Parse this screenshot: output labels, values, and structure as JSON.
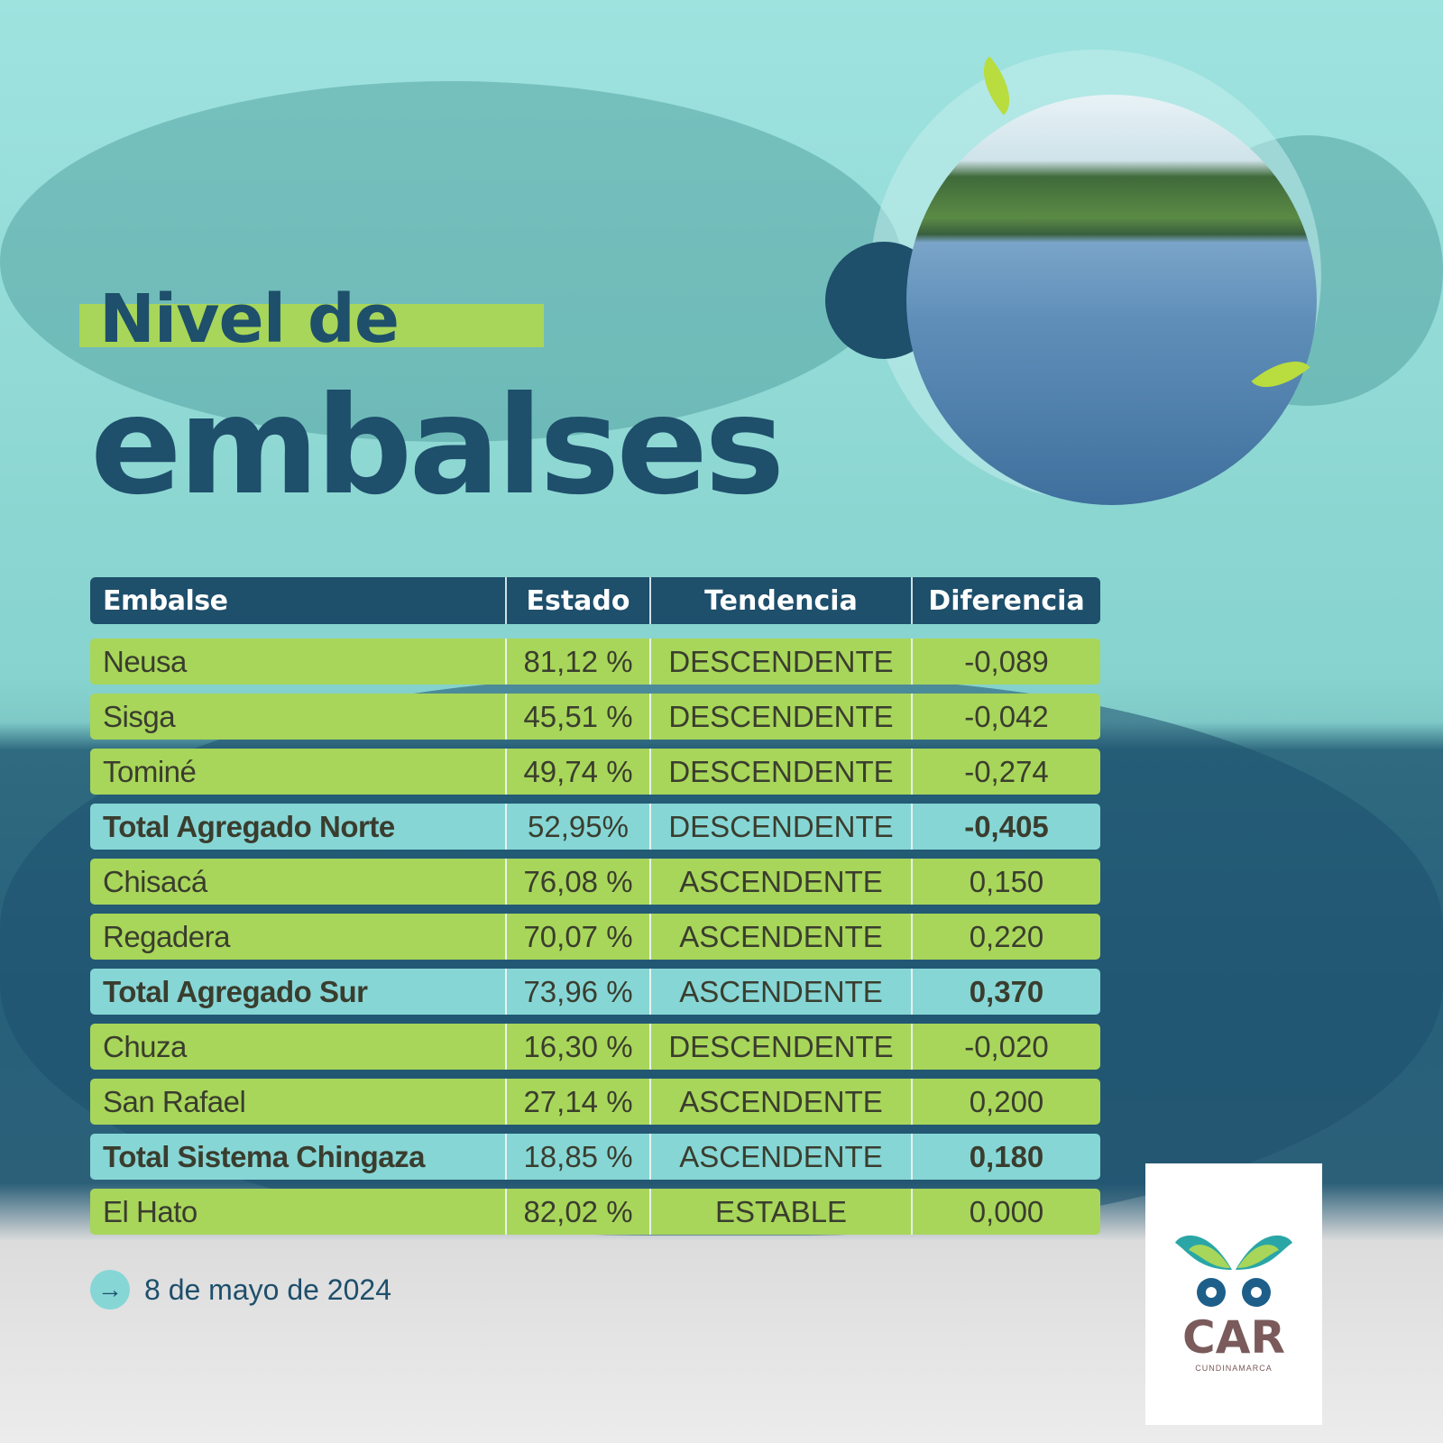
{
  "title": {
    "line1": "Nivel de",
    "line2": "embalses"
  },
  "table": {
    "headers": [
      "Embalse",
      "Estado",
      "Tendencia",
      "Diferencia"
    ],
    "rows": [
      {
        "embalse": "Neusa",
        "estado": "81,12 %",
        "tendencia": "DESCENDENTE",
        "diferencia": "-0,089",
        "total": false
      },
      {
        "embalse": "Sisga",
        "estado": "45,51 %",
        "tendencia": "DESCENDENTE",
        "diferencia": "-0,042",
        "total": false
      },
      {
        "embalse": "Tominé",
        "estado": "49,74 %",
        "tendencia": "DESCENDENTE",
        "diferencia": "-0,274",
        "total": false
      },
      {
        "embalse": "Total Agregado Norte",
        "estado": "52,95%",
        "tendencia": "DESCENDENTE",
        "diferencia": "-0,405",
        "total": true
      },
      {
        "embalse": "Chisacá",
        "estado": "76,08 %",
        "tendencia": "ASCENDENTE",
        "diferencia": "0,150",
        "total": false
      },
      {
        "embalse": "Regadera",
        "estado": "70,07 %",
        "tendencia": "ASCENDENTE",
        "diferencia": "0,220",
        "total": false
      },
      {
        "embalse": "Total Agregado Sur",
        "estado": "73,96 %",
        "tendencia": "ASCENDENTE",
        "diferencia": "0,370",
        "total": true
      },
      {
        "embalse": "Chuza",
        "estado": "16,30 %",
        "tendencia": "DESCENDENTE",
        "diferencia": "-0,020",
        "total": false
      },
      {
        "embalse": "San Rafael",
        "estado": "27,14 %",
        "tendencia": "ASCENDENTE",
        "diferencia": "0,200",
        "total": false
      },
      {
        "embalse": "Total Sistema Chingaza",
        "estado": "18,85 %",
        "tendencia": "ASCENDENTE",
        "diferencia": "0,180",
        "total": true
      },
      {
        "embalse": "El Hato",
        "estado": "82,02 %",
        "tendencia": "ESTABLE",
        "diferencia": "0,000",
        "total": false
      }
    ]
  },
  "date": "8 de mayo de 2024",
  "date_icon": "arrow-right-icon",
  "logo": {
    "text": "CAR",
    "subtitle": "CUNDINAMARCA"
  },
  "colors": {
    "dark_blue": "#1e4f6b",
    "green": "#a8d65a",
    "teal": "#86d6d6"
  }
}
